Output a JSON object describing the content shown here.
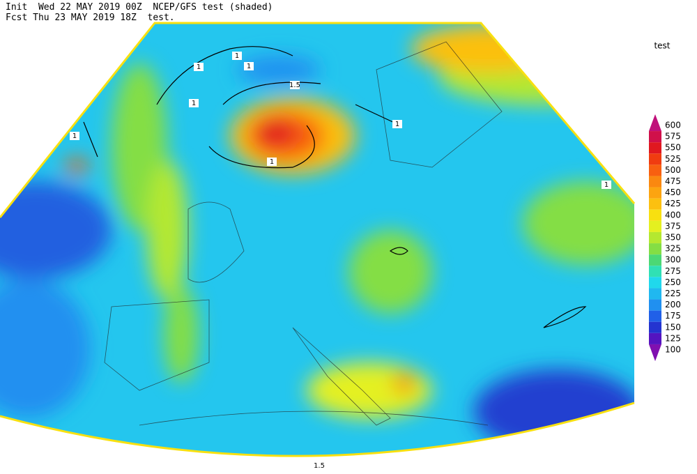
{
  "header": {
    "line1": "Init  Wed 22 MAY 2019 00Z  NCEP/GFS test (shaded)",
    "line2": "Fcst Thu 23 MAY 2019 18Z  test."
  },
  "colorbar": {
    "title": "test",
    "levels": [
      {
        "value": 600,
        "color": "#c0107a"
      },
      {
        "value": 575,
        "color": "#d0104a"
      },
      {
        "value": 550,
        "color": "#e01820"
      },
      {
        "value": 525,
        "color": "#f03c10"
      },
      {
        "value": 500,
        "color": "#f86010"
      },
      {
        "value": 475,
        "color": "#fa8810"
      },
      {
        "value": 450,
        "color": "#fca410"
      },
      {
        "value": 425,
        "color": "#fcc010"
      },
      {
        "value": 400,
        "color": "#f8e010"
      },
      {
        "value": 375,
        "color": "#e4f020"
      },
      {
        "value": 350,
        "color": "#b4e830"
      },
      {
        "value": 325,
        "color": "#84de44"
      },
      {
        "value": 300,
        "color": "#4cd874"
      },
      {
        "value": 275,
        "color": "#30e0b4"
      },
      {
        "value": 250,
        "color": "#20d8ec"
      },
      {
        "value": 225,
        "color": "#20b8f0"
      },
      {
        "value": 200,
        "color": "#2090f0"
      },
      {
        "value": 175,
        "color": "#2060e8"
      },
      {
        "value": 150,
        "color": "#2434d0"
      },
      {
        "value": 125,
        "color": "#5414c0"
      },
      {
        "value": 100,
        "color": "#8010b0"
      }
    ]
  },
  "map": {
    "contour_labels": [
      "1",
      "1",
      "1",
      "1",
      "1",
      "1",
      "1",
      "1",
      "1.5",
      "1.5"
    ]
  }
}
